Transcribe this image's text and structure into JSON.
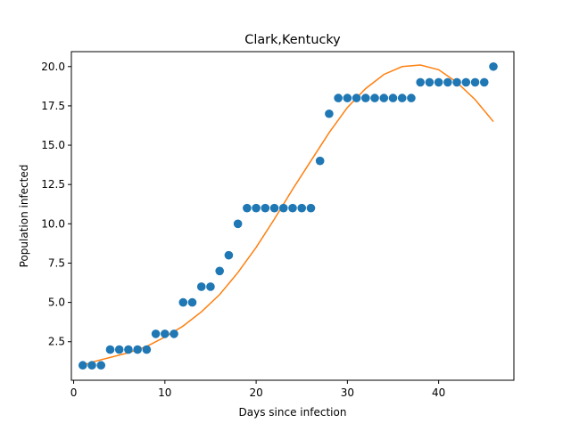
{
  "chart_data": {
    "type": "scatter",
    "title": "Clark,Kentucky",
    "xlabel": "Days since infection",
    "ylabel": "Population infected",
    "xlim": [
      -0.25,
      48.25
    ],
    "ylim": [
      0.05,
      20.95
    ],
    "x_ticks": [
      0,
      10,
      20,
      30,
      40
    ],
    "y_ticks": [
      2.5,
      5.0,
      7.5,
      10.0,
      12.5,
      15.0,
      17.5,
      20.0
    ],
    "y_tick_labels": [
      "2.5",
      "5.0",
      "7.5",
      "10.0",
      "12.5",
      "15.0",
      "17.5",
      "20.0"
    ],
    "grid": false,
    "series": [
      {
        "type": "scatter",
        "color": "#1f77b4",
        "x": [
          1,
          2,
          3,
          4,
          5,
          6,
          7,
          8,
          9,
          10,
          11,
          12,
          13,
          14,
          15,
          16,
          17,
          18,
          19,
          20,
          21,
          22,
          23,
          24,
          25,
          26,
          27,
          28,
          29,
          30,
          31,
          32,
          33,
          34,
          35,
          36,
          37,
          38,
          39,
          40,
          41,
          42,
          43,
          44,
          45,
          46
        ],
        "y": [
          1,
          1,
          1,
          2,
          2,
          2,
          2,
          2,
          3,
          3,
          3,
          5,
          5,
          6,
          6,
          7,
          8,
          10,
          11,
          11,
          11,
          11,
          11,
          11,
          11,
          11,
          14,
          17,
          18,
          18,
          18,
          18,
          18,
          18,
          18,
          18,
          18,
          19,
          19,
          19,
          19,
          19,
          19,
          19,
          19,
          20
        ]
      },
      {
        "type": "line",
        "color": "#ff7f0e",
        "x": [
          1,
          2,
          4,
          6,
          8,
          10,
          12,
          14,
          16,
          18,
          20,
          22,
          24,
          26,
          28,
          30,
          32,
          34,
          36,
          38,
          40,
          42,
          44,
          46
        ],
        "y": [
          1.0,
          1.2,
          1.5,
          1.8,
          2.2,
          2.8,
          3.5,
          4.4,
          5.5,
          6.9,
          8.5,
          10.3,
          12.2,
          14.0,
          15.8,
          17.4,
          18.6,
          19.5,
          20.0,
          20.1,
          19.8,
          19.0,
          17.9,
          16.5
        ]
      }
    ]
  }
}
